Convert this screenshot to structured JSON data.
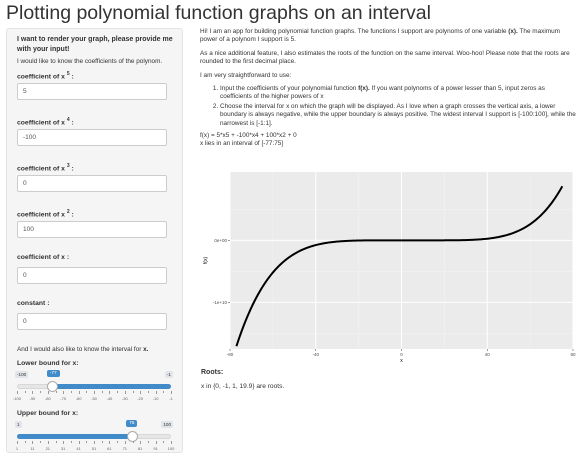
{
  "title": "Plotting polynomial function graphs on an interval",
  "sidebar": {
    "heading": "I want to render your graph, please provide me with your input!",
    "intro": "I would like to know the coefficients of the polynom.",
    "coefficients": [
      {
        "label_prefix": "coefficient of x",
        "power": "5",
        "value": "5"
      },
      {
        "label_prefix": "coefficient of x",
        "power": "4",
        "value": "-100"
      },
      {
        "label_prefix": "coefficient of x",
        "power": "3",
        "value": "0"
      },
      {
        "label_prefix": "coefficient of x",
        "power": "2",
        "value": "100"
      },
      {
        "label_prefix": "coefficient of x :",
        "power": "",
        "value": "0"
      },
      {
        "label_prefix": "constant :",
        "power": "",
        "value": "0"
      }
    ],
    "interval_text_prefix": "And I would also like to know the interval for ",
    "interval_text_var": "x.",
    "lower": {
      "label": "Lower bound for x:",
      "min": "-100",
      "max": "-1",
      "value": "-77",
      "value_num": -77,
      "min_num": -100,
      "max_num": -1,
      "ticks": [
        "-100",
        "-90",
        "-80",
        "-70",
        "-60",
        "-50",
        "-40",
        "-30",
        "-20",
        "-10",
        "-1"
      ]
    },
    "upper": {
      "label": "Upper bound for x:",
      "min": "1",
      "max": "100",
      "value": "75",
      "value_num": 75,
      "min_num": 1,
      "max_num": 100,
      "ticks": [
        "1",
        "11",
        "21",
        "31",
        "41",
        "51",
        "61",
        "71",
        "81",
        "91",
        "100"
      ]
    }
  },
  "main": {
    "intro_a": "Hi! I am an app for building polynomial function graphs. The functions I support are polynoms of one variable ",
    "intro_var": "(x).",
    "intro_b": " The maximum power of a polynom I support is 5.",
    "feature": "As a nice additional feature, I also estimates the roots of the function on the same interval. Woo-hoo! Please note that the roots are rounded to the first decimal place.",
    "straight": "I am very straightforward to use:",
    "step1_a": "Input the coefficients of your polynomial function ",
    "step1_var": "f(x).",
    "step1_b": " If you want polynoms of a power lesser than 5, input zeros as coefficients of the higher powers of x",
    "step2": "Choose the interval for x on which the graph will be displayed. As I love when a graph crosses the vertical axis, a lower boundary is always negative, while the upper boundary is always positive. The widest interval I support is [-100:100], while the narrowest is [-1:1].",
    "formula": "f(x) = 5*x5 + -100*x4 + 100*x2 + 0",
    "interval_line": "x lies in an interval of [-77:75]",
    "roots_heading": "Roots:",
    "roots_text": "x in {0, -1, 1, 19.9} are roots."
  },
  "chart_data": {
    "type": "line",
    "coefficients": [
      5,
      -100,
      0,
      100,
      0,
      0
    ],
    "x_range": [
      -77,
      75
    ],
    "xlim": [
      -80,
      80
    ],
    "ylim": [
      -17500000000.0,
      11000000000.0
    ],
    "xticks": [
      -80,
      -40,
      0,
      40,
      80
    ],
    "xtick_labels": [
      "-80",
      "-40",
      "0",
      "40",
      "80"
    ],
    "yticks": [
      -10000000000.0,
      0
    ],
    "ytick_labels": [
      "-1e+10",
      "0e+00"
    ],
    "xlabel": "x",
    "ylabel": "f(x)",
    "grid": true,
    "panel_color": "#ebebeb",
    "line_color": "#000000"
  }
}
